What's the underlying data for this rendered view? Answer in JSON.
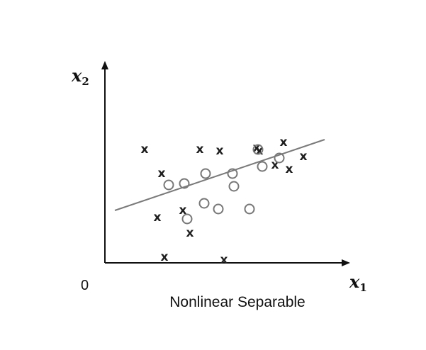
{
  "figure": {
    "caption": "Nonlinear Separable",
    "origin_label": "0",
    "x_axis": {
      "symbol": "x",
      "subscript": "1"
    },
    "y_axis": {
      "symbol": "x",
      "subscript": "2"
    },
    "colors": {
      "axis": "#111111",
      "cross_marker": "#1e1e1e",
      "circle_marker": "#777777",
      "boundary_line": "#7a7a7a"
    }
  },
  "chart_data": {
    "type": "scatter",
    "series": [
      {
        "marker": "x",
        "points": [
          [
            40,
            63
          ],
          [
            28,
            80
          ],
          [
            67,
            80
          ],
          [
            81,
            79
          ],
          [
            107,
            81
          ],
          [
            126,
            85
          ],
          [
            130,
            66
          ],
          [
            120,
            69
          ],
          [
            109,
            79
          ],
          [
            140,
            75
          ],
          [
            55,
            37
          ],
          [
            60,
            21
          ],
          [
            42,
            4
          ],
          [
            37,
            32
          ],
          [
            84,
            2
          ]
        ]
      },
      {
        "marker": "o",
        "points": [
          [
            71,
            63
          ],
          [
            90,
            63
          ],
          [
            111,
            68
          ],
          [
            108,
            80
          ],
          [
            123,
            74
          ],
          [
            102,
            38
          ],
          [
            80,
            38
          ],
          [
            58,
            31
          ],
          [
            70,
            42
          ],
          [
            45,
            55
          ],
          [
            56,
            56
          ],
          [
            91,
            54
          ]
        ]
      }
    ],
    "decision_boundary": {
      "x": [
        7,
        155
      ],
      "y": [
        37,
        87
      ]
    }
  }
}
